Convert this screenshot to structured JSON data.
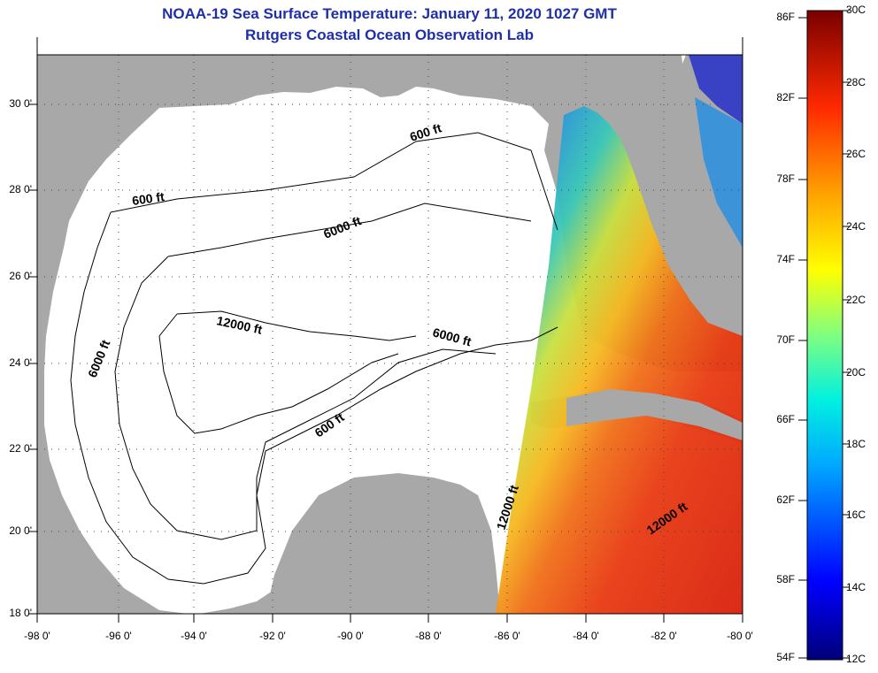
{
  "title": "NOAA-19 Sea Surface Temperature:  January 11, 2020 1027 GMT",
  "subtitle": "Rutgers Coastal Ocean Observation Lab",
  "lat_ticks": [
    "30 0'",
    "28 0'",
    "26 0'",
    "24 0'",
    "22 0'",
    "20 0'",
    "18 0'"
  ],
  "lon_ticks": [
    "-98 0'",
    "-96 0'",
    "-94 0'",
    "-92 0'",
    "-90 0'",
    "-88 0'",
    "-86 0'",
    "-84 0'",
    "-82 0'",
    "-80 0'"
  ],
  "colorbar": {
    "fahrenheit": [
      "86F",
      "82F",
      "78F",
      "74F",
      "70F",
      "66F",
      "62F",
      "58F",
      "54F"
    ],
    "celsius": [
      "30C",
      "28C",
      "26C",
      "24C",
      "22C",
      "20C",
      "18C",
      "16C",
      "14C",
      "12C"
    ]
  },
  "contour_labels": {
    "north_600": "600 ft",
    "west_600": "600 ft",
    "north_6000": "6000 ft",
    "west_6000": "6000 ft",
    "center_12000": "12000 ft",
    "east_6000": "6000 ft",
    "south_600": "600 ft",
    "yucatan_12000": "12000 ft",
    "caribbean_12000": "12000 ft"
  },
  "colors": {
    "land": "#a8a8a8",
    "water": "#ffffff",
    "title": "#1f2fa8"
  }
}
